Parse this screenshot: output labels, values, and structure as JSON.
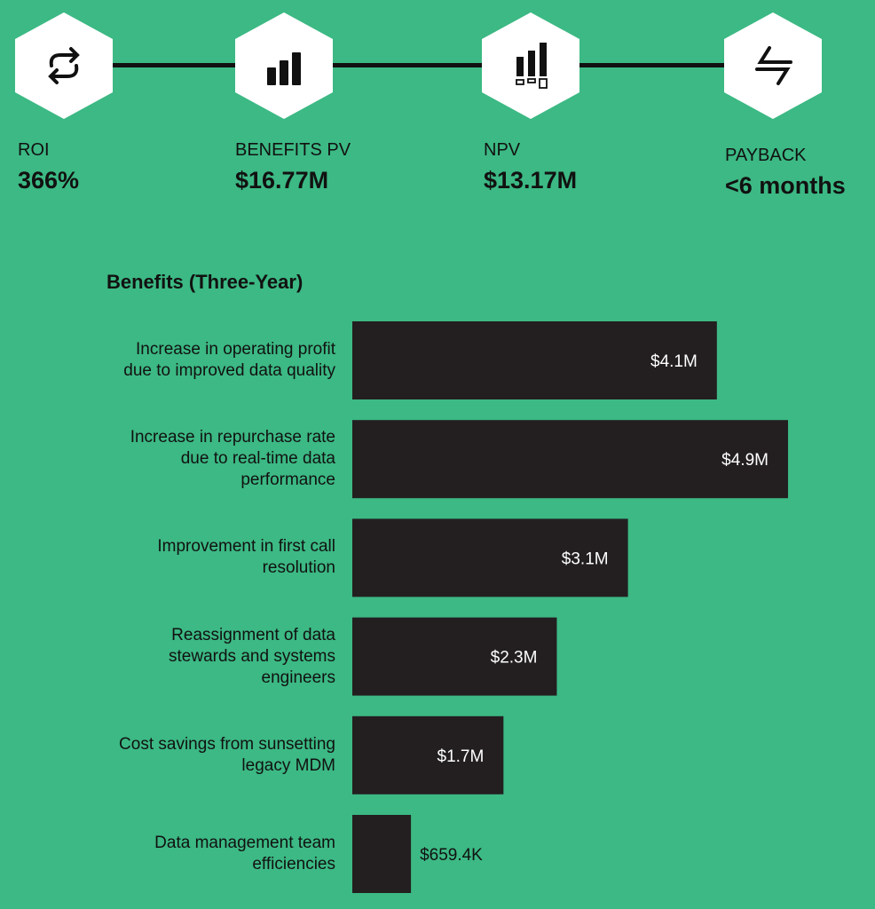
{
  "kpis": [
    {
      "label": "ROI",
      "value": "366%",
      "icon": "refresh-icon"
    },
    {
      "label": "BENEFITS PV",
      "value": "$16.77M",
      "icon": "bar-chart-icon"
    },
    {
      "label": "NPV",
      "value": "$13.17M",
      "icon": "bar-chart-boxes-icon"
    },
    {
      "label": "PAYBACK",
      "value": "<6 months",
      "icon": "exchange-arrows-icon"
    }
  ],
  "colors": {
    "background": "#3cb984",
    "bar": "#231f20",
    "bar_label": "#ffffff"
  },
  "chart_data": {
    "type": "bar",
    "orientation": "horizontal",
    "title": "Benefits (Three-Year)",
    "categories": [
      "Increase in operating profit due to improved data quality",
      "Increase in repurchase rate due to real-time data performance",
      "Improvement in first call resolution",
      "Reassignment of data stewards and systems engineers",
      "Cost savings from sunsetting legacy MDM",
      "Data management team efficiencies"
    ],
    "values": [
      4.1,
      4.9,
      3.1,
      2.3,
      1.7,
      0.6594
    ],
    "data_labels": [
      "$4.1M",
      "$4.9M",
      "$3.1M",
      "$2.3M",
      "$1.7M",
      "$659.4K"
    ],
    "unit": "$M",
    "grid": false
  }
}
